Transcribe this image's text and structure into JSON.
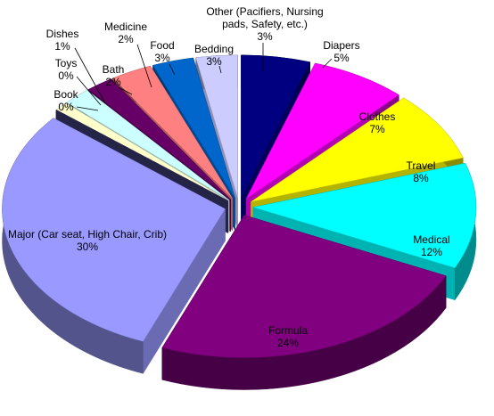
{
  "chart_data": {
    "type": "pie",
    "categories": [
      "Diapers",
      "Clothes",
      "Travel",
      "Medical",
      "Formula",
      "Major (Car seat, High Chair, Crib)",
      "Book",
      "Toys",
      "Dishes",
      "Bath",
      "Medicine",
      "Food",
      "Bedding",
      "Other (Pacifiers, Nursing pads, Safety, etc.)"
    ],
    "values": [
      5,
      7,
      8,
      12,
      24,
      30,
      0,
      0,
      1,
      2,
      2,
      3,
      3,
      3
    ],
    "value_labels": [
      "5%",
      "7%",
      "8%",
      "12%",
      "24%",
      "30%",
      "0%",
      "0%",
      "1%",
      "2%",
      "2%",
      "3%",
      "3%",
      "3%"
    ],
    "colors": [
      "#000080",
      "#ff00ff",
      "#ffff00",
      "#00ffff",
      "#800080",
      "#9999ff",
      "#333366",
      "#993366",
      "#ffffcc",
      "#ccffff",
      "#660066",
      "#ff8080",
      "#0066cc",
      "#ccccff"
    ]
  }
}
